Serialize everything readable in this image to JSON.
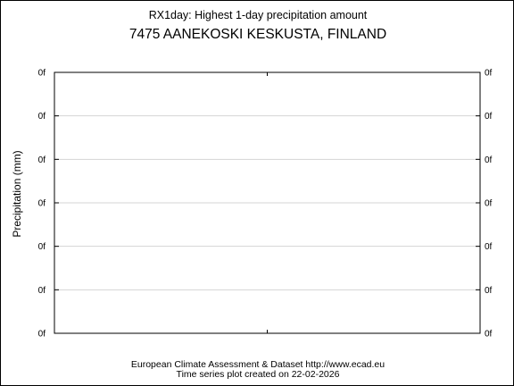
{
  "chart_data": {
    "type": "line",
    "title": "RX1day: Highest 1-day precipitation amount",
    "subtitle": "7475 AANEKOSKI KESKUSTA, FINLAND",
    "ylabel": "Precipitation (mm)",
    "xlabel": "",
    "y_tick_labels": [
      "0f",
      "0f",
      "0f",
      "0f",
      "0f",
      "0f",
      "0f"
    ],
    "series": [],
    "grid": true
  },
  "footer": {
    "line1": "European Climate Assessment & Dataset  http://www.ecad.eu",
    "line2": "Time series plot created on 22-02-2026"
  }
}
